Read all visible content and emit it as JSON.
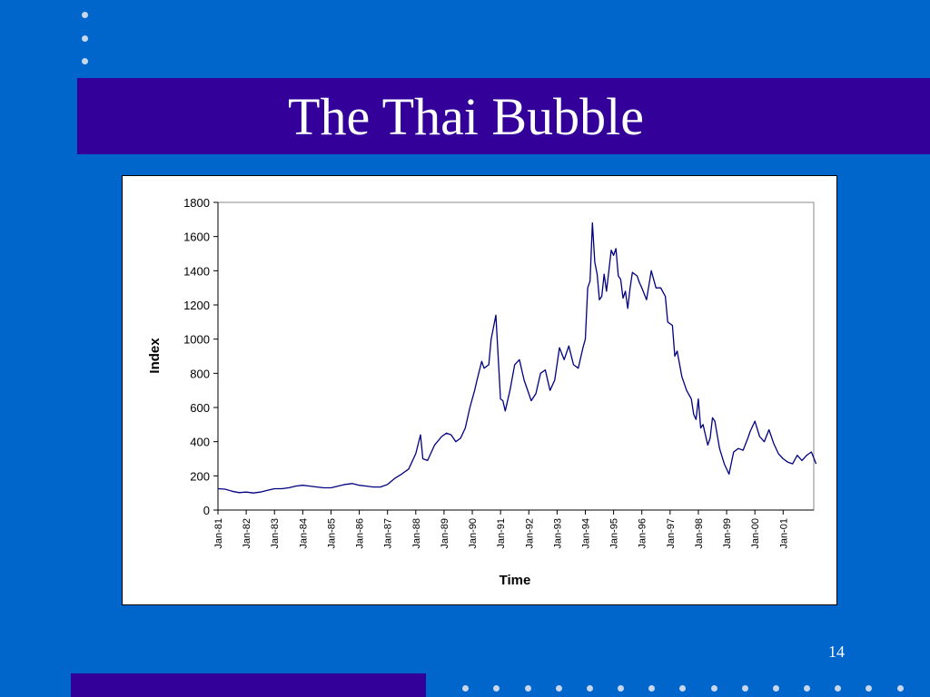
{
  "slide": {
    "title": "The Thai Bubble",
    "page_number": "14"
  },
  "colors": {
    "background": "#0066cc",
    "title_band": "#330099",
    "line": "#000080",
    "bullet_dots": "#c8d6ee"
  },
  "chart_data": {
    "type": "line",
    "title": "",
    "xlabel": "Time",
    "ylabel": "Index",
    "ylim": [
      0,
      1800
    ],
    "y_ticks": [
      "0",
      "200",
      "400",
      "600",
      "800",
      "1000",
      "1200",
      "1400",
      "1600",
      "1800"
    ],
    "x_tick_labels": [
      "Jan-81",
      "Jan-82",
      "Jan-83",
      "Jan-84",
      "Jan-85",
      "Jan-86",
      "Jan-87",
      "Jan-88",
      "Jan-89",
      "Jan-90",
      "Jan-91",
      "Jan-92",
      "Jan-93",
      "Jan-94",
      "Jan-95",
      "Jan-96",
      "Jan-97",
      "Jan-98",
      "Jan-99",
      "Jan-00",
      "Jan-01"
    ],
    "grid": false,
    "legend": "none",
    "series": [
      {
        "points": [
          [
            "1981-01",
            125
          ],
          [
            "1981-04",
            122
          ],
          [
            "1981-07",
            110
          ],
          [
            "1981-10",
            102
          ],
          [
            "1982-01",
            105
          ],
          [
            "1982-04",
            100
          ],
          [
            "1982-07",
            105
          ],
          [
            "1982-10",
            115
          ],
          [
            "1983-01",
            125
          ],
          [
            "1983-04",
            125
          ],
          [
            "1983-07",
            130
          ],
          [
            "1983-10",
            140
          ],
          [
            "1984-01",
            145
          ],
          [
            "1984-04",
            140
          ],
          [
            "1984-07",
            135
          ],
          [
            "1984-10",
            130
          ],
          [
            "1985-01",
            130
          ],
          [
            "1985-04",
            140
          ],
          [
            "1985-07",
            150
          ],
          [
            "1985-10",
            155
          ],
          [
            "1986-01",
            145
          ],
          [
            "1986-04",
            140
          ],
          [
            "1986-07",
            135
          ],
          [
            "1986-10",
            135
          ],
          [
            "1987-01",
            150
          ],
          [
            "1987-04",
            185
          ],
          [
            "1987-07",
            210
          ],
          [
            "1987-10",
            240
          ],
          [
            "1987-12",
            300
          ],
          [
            "1988-01",
            330
          ],
          [
            "1988-03",
            440
          ],
          [
            "1988-04",
            300
          ],
          [
            "1988-06",
            290
          ],
          [
            "1988-09",
            380
          ],
          [
            "1988-12",
            430
          ],
          [
            "1989-02",
            450
          ],
          [
            "1989-04",
            440
          ],
          [
            "1989-06",
            400
          ],
          [
            "1989-08",
            420
          ],
          [
            "1989-10",
            480
          ],
          [
            "1989-12",
            600
          ],
          [
            "1990-02",
            700
          ],
          [
            "1990-03",
            760
          ],
          [
            "1990-05",
            870
          ],
          [
            "1990-06",
            830
          ],
          [
            "1990-08",
            850
          ],
          [
            "1990-09",
            1000
          ],
          [
            "1990-11",
            1140
          ],
          [
            "1991-01",
            650
          ],
          [
            "1991-02",
            640
          ],
          [
            "1991-03",
            580
          ],
          [
            "1991-05",
            700
          ],
          [
            "1991-07",
            850
          ],
          [
            "1991-09",
            880
          ],
          [
            "1991-11",
            760
          ],
          [
            "1992-01",
            680
          ],
          [
            "1992-02",
            640
          ],
          [
            "1992-04",
            680
          ],
          [
            "1992-06",
            800
          ],
          [
            "1992-08",
            820
          ],
          [
            "1992-10",
            700
          ],
          [
            "1992-12",
            760
          ],
          [
            "1993-02",
            950
          ],
          [
            "1993-04",
            880
          ],
          [
            "1993-06",
            960
          ],
          [
            "1993-08",
            850
          ],
          [
            "1993-10",
            830
          ],
          [
            "1993-12",
            950
          ],
          [
            "1994-01",
            1000
          ],
          [
            "1994-02",
            1300
          ],
          [
            "1994-03",
            1340
          ],
          [
            "1994-04",
            1680
          ],
          [
            "1994-05",
            1450
          ],
          [
            "1994-06",
            1380
          ],
          [
            "1994-07",
            1230
          ],
          [
            "1994-08",
            1250
          ],
          [
            "1994-09",
            1380
          ],
          [
            "1994-10",
            1280
          ],
          [
            "1994-11",
            1400
          ],
          [
            "1994-12",
            1520
          ],
          [
            "1995-01",
            1490
          ],
          [
            "1995-02",
            1530
          ],
          [
            "1995-03",
            1370
          ],
          [
            "1995-04",
            1350
          ],
          [
            "1995-05",
            1240
          ],
          [
            "1995-06",
            1280
          ],
          [
            "1995-07",
            1180
          ],
          [
            "1995-08",
            1300
          ],
          [
            "1995-09",
            1390
          ],
          [
            "1995-10",
            1380
          ],
          [
            "1995-11",
            1370
          ],
          [
            "1995-12",
            1330
          ],
          [
            "1996-01",
            1300
          ],
          [
            "1996-03",
            1230
          ],
          [
            "1996-05",
            1400
          ],
          [
            "1996-07",
            1300
          ],
          [
            "1996-09",
            1300
          ],
          [
            "1996-11",
            1250
          ],
          [
            "1996-12",
            1100
          ],
          [
            "1997-02",
            1080
          ],
          [
            "1997-03",
            900
          ],
          [
            "1997-04",
            930
          ],
          [
            "1997-06",
            780
          ],
          [
            "1997-08",
            700
          ],
          [
            "1997-10",
            650
          ],
          [
            "1997-11",
            560
          ],
          [
            "1997-12",
            530
          ],
          [
            "1998-01",
            650
          ],
          [
            "1998-02",
            480
          ],
          [
            "1998-03",
            500
          ],
          [
            "1998-05",
            380
          ],
          [
            "1998-06",
            420
          ],
          [
            "1998-07",
            540
          ],
          [
            "1998-08",
            520
          ],
          [
            "1998-10",
            360
          ],
          [
            "1998-12",
            270
          ],
          [
            "1999-02",
            210
          ],
          [
            "1999-04",
            340
          ],
          [
            "1999-06",
            360
          ],
          [
            "1999-08",
            350
          ],
          [
            "1999-10",
            420
          ],
          [
            "1999-11",
            460
          ],
          [
            "2000-01",
            520
          ],
          [
            "2000-03",
            430
          ],
          [
            "2000-05",
            400
          ],
          [
            "2000-07",
            470
          ],
          [
            "2000-09",
            390
          ],
          [
            "2000-11",
            330
          ],
          [
            "2001-01",
            300
          ],
          [
            "2001-03",
            280
          ],
          [
            "2001-05",
            270
          ],
          [
            "2001-07",
            320
          ],
          [
            "2001-09",
            290
          ],
          [
            "2001-11",
            320
          ],
          [
            "2002-01",
            340
          ],
          [
            "2002-03",
            270
          ]
        ]
      }
    ]
  }
}
